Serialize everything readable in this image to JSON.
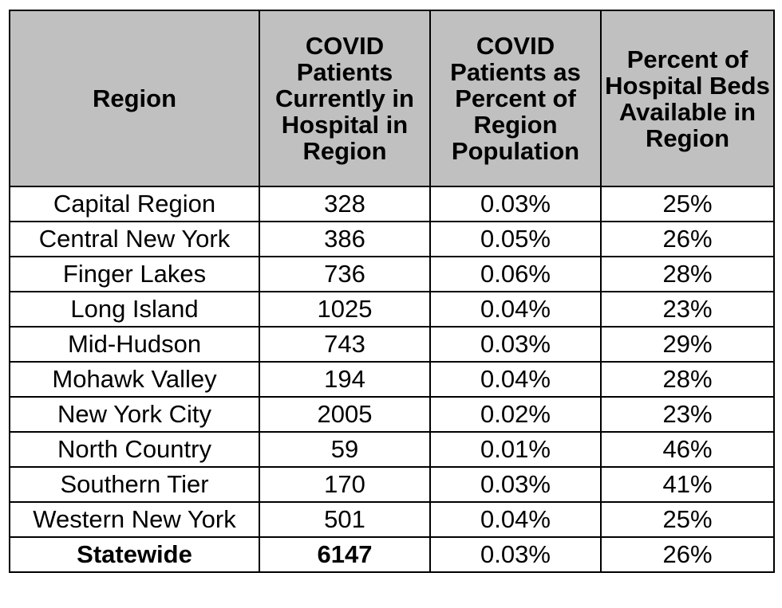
{
  "table": {
    "headers": [
      "Region",
      "COVID Patients Currently in Hospital in Region",
      "COVID Patients as Percent of Region Population",
      "Percent of Hospital Beds Available in Region"
    ],
    "rows": [
      [
        "Capital Region",
        "328",
        "0.03%",
        "25%"
      ],
      [
        "Central New York",
        "386",
        "0.05%",
        "26%"
      ],
      [
        "Finger Lakes",
        "736",
        "0.06%",
        "28%"
      ],
      [
        "Long Island",
        "1025",
        "0.04%",
        "23%"
      ],
      [
        "Mid-Hudson",
        "743",
        "0.03%",
        "29%"
      ],
      [
        "Mohawk Valley",
        "194",
        "0.04%",
        "28%"
      ],
      [
        "New York City",
        "2005",
        "0.02%",
        "23%"
      ],
      [
        "North Country",
        "59",
        "0.01%",
        "46%"
      ],
      [
        "Southern Tier",
        "170",
        "0.03%",
        "41%"
      ],
      [
        "Western New York",
        "501",
        "0.04%",
        "25%"
      ]
    ],
    "total": [
      "Statewide",
      "6147",
      "0.03%",
      "26%"
    ]
  }
}
